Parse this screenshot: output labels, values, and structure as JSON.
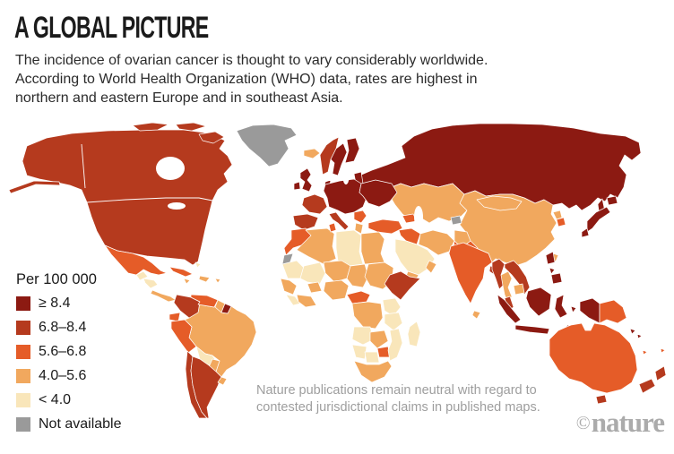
{
  "header": {
    "title": "A GLOBAL PICTURE",
    "subtitle_lines": [
      "The incidence of ovarian cancer is thought to vary considerably worldwide.",
      "According to World Health Organization (WHO) data, rates are highest in",
      "northern and eastern Europe and in southeast Asia."
    ]
  },
  "legend": {
    "title": "Per 100 000",
    "items": [
      {
        "label": "≥ 8.4",
        "band": "band1",
        "color": "#8c1a12"
      },
      {
        "label": "6.8–8.4",
        "band": "band2",
        "color": "#b53a1e"
      },
      {
        "label": "5.6–6.8",
        "band": "band3",
        "color": "#e55c28"
      },
      {
        "label": "4.0–5.6",
        "band": "band4",
        "color": "#f1a85e"
      },
      {
        "label": "< 4.0",
        "band": "band5",
        "color": "#f9e6ba"
      },
      {
        "label": "Not available",
        "band": "na",
        "color": "#9a9a9a"
      }
    ]
  },
  "map": {
    "unit": "Per 100 000",
    "palette": {
      "band1": "#8c1a12",
      "band2": "#b53a1e",
      "band3": "#e55c28",
      "band4": "#f1a85e",
      "band5": "#f9e6ba",
      "na": "#9a9a9a"
    },
    "regions": {
      "greenland": "na",
      "north-america": "band2",
      "aleutians": "band2",
      "arctic-island-1": "band2",
      "arctic-island-2": "band2",
      "arctic-island-3": "band2",
      "mexico": "band3",
      "guatemala": "band5",
      "honduras": "band5",
      "costa-panama": "band4",
      "cuba": "band3",
      "hispaniola": "band4",
      "jamaica": "band4",
      "puerto-rico": "band4",
      "bahamas": "band5",
      "brazil": "band4",
      "bolivia": "band5",
      "colombia": "band2",
      "venezuela": "band3",
      "guyana": "band4",
      "suriname": "band1",
      "ecuador": "band3",
      "peru": "band3",
      "paraguay": "band4",
      "chile": "band2",
      "argentina": "band2",
      "uruguay": "band4",
      "iceland": "band4",
      "norway": "band2",
      "sweden": "band1",
      "finland": "band1",
      "uk": "band1",
      "ireland": "band1",
      "denmark": "band1",
      "baltics": "band1",
      "central-europe": "band1",
      "belarus-ukraine": "band1",
      "france": "band2",
      "iberia": "band2",
      "italy": "band2",
      "sicily": "band2",
      "balkans": "band3",
      "greece": "band4",
      "russia": "band1",
      "sakhalin": "band1",
      "kazakhstan-central-asia": "band4",
      "tajikistan": "na",
      "caucasus": "band3",
      "turkey": "band3",
      "syria-iraq": "band3",
      "saudi-arabia": "band5",
      "yemen": "band4",
      "oman": "band4",
      "iran": "band4",
      "afghanistan": "band4",
      "pakistan": "band3",
      "morocco": "band3",
      "western-sahara": "na",
      "algeria": "band4",
      "tunisia": "band3",
      "libya": "band5",
      "egypt": "band4",
      "mauritania": "band5",
      "mali": "band5",
      "senegal": "band4",
      "sierra-leone": "band5",
      "ivory-ghana": "band4",
      "burkina": "band4",
      "niger": "band4",
      "nigeria": "band4",
      "chad": "band4",
      "sudan": "band4",
      "ethiopia-somalia": "band2",
      "cameroon-car": "band3",
      "drc": "band4",
      "uganda-kenya": "band5",
      "tanzania": "band5",
      "angola": "band5",
      "zambia": "band4",
      "zimbabwe": "band3",
      "mozambique": "band5",
      "namibia": "band5",
      "botswana": "band5",
      "south-africa": "band4",
      "madagascar": "band5",
      "india": "band3",
      "sri-lanka": "band4",
      "bangladesh": "band2",
      "myanmar": "band2",
      "thailand": "band4",
      "laos-vietnam": "band2",
      "cambodia": "band4",
      "malay-peninsula": "band2",
      "china": "band4",
      "mongolia": "band4",
      "north-korea": "band4",
      "south-korea": "band3",
      "japan-hokkaido": "band1",
      "japan-honshu": "band1",
      "japan-kyushu": "band1",
      "taiwan": "band4",
      "philippines-luzon": "band1",
      "philippines-visayas": "band1",
      "philippines-mindanao": "band1",
      "sumatra": "band1",
      "java": "band1",
      "borneo": "band1",
      "sulawesi": "band1",
      "moluccas": "band1",
      "timor": "band1",
      "new-guinea-west": "band1",
      "png-east": "band3",
      "solomon-1": "band1",
      "solomon-2": "band1",
      "vanuatu": "band3",
      "fiji": "band3",
      "australia": "band3",
      "tasmania": "band2",
      "nz-north": "band2",
      "nz-south": "band2"
    }
  },
  "footnote": {
    "lines": [
      "Nature publications remain neutral with regard to",
      "contested jurisdictional claims in published maps."
    ]
  },
  "branding": {
    "copyright": "©",
    "logo": "nature"
  }
}
